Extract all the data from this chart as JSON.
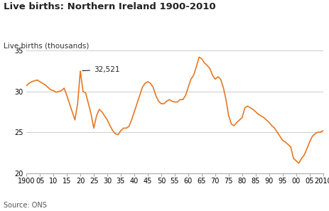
{
  "title": "Live births: Northern Ireland 1900-2010",
  "ylabel": "Live births (thousands)",
  "source": "Source: ONS",
  "line_color": "#E87722",
  "background_color": "#ffffff",
  "ylim": [
    20,
    35
  ],
  "yticks": [
    20,
    25,
    30,
    35
  ],
  "xticks": [
    1900,
    1905,
    1910,
    1915,
    1920,
    1925,
    1930,
    1935,
    1940,
    1945,
    1950,
    1955,
    1960,
    1965,
    1970,
    1975,
    1980,
    1985,
    1990,
    1995,
    2000,
    2005,
    2010
  ],
  "xticklabels": [
    "1900",
    "05",
    "10",
    "15",
    "20",
    "25",
    "30",
    "35",
    "40",
    "45",
    "50",
    "55",
    "60",
    "65",
    "70",
    "75",
    "80",
    "85",
    "90",
    "95",
    "00",
    "05",
    "2010"
  ],
  "annotation_year": 1920,
  "annotation_value": 32.521,
  "annotation_text": "32,521",
  "years": [
    1900,
    1901,
    1902,
    1903,
    1904,
    1905,
    1906,
    1907,
    1908,
    1909,
    1910,
    1911,
    1912,
    1913,
    1914,
    1915,
    1916,
    1917,
    1918,
    1919,
    1920,
    1921,
    1922,
    1923,
    1924,
    1925,
    1926,
    1927,
    1928,
    1929,
    1930,
    1931,
    1932,
    1933,
    1934,
    1935,
    1936,
    1937,
    1938,
    1939,
    1940,
    1941,
    1942,
    1943,
    1944,
    1945,
    1946,
    1947,
    1948,
    1949,
    1950,
    1951,
    1952,
    1953,
    1954,
    1955,
    1956,
    1957,
    1958,
    1959,
    1960,
    1961,
    1962,
    1963,
    1964,
    1965,
    1966,
    1967,
    1968,
    1969,
    1970,
    1971,
    1972,
    1973,
    1974,
    1975,
    1976,
    1977,
    1978,
    1979,
    1980,
    1981,
    1982,
    1983,
    1984,
    1985,
    1986,
    1987,
    1988,
    1989,
    1990,
    1991,
    1992,
    1993,
    1994,
    1995,
    1996,
    1997,
    1998,
    1999,
    2000,
    2001,
    2002,
    2003,
    2004,
    2005,
    2006,
    2007,
    2008,
    2009,
    2010
  ],
  "values": [
    30.7,
    31.0,
    31.2,
    31.3,
    31.4,
    31.2,
    31.0,
    30.8,
    30.5,
    30.2,
    30.1,
    29.9,
    30.0,
    30.1,
    30.4,
    29.5,
    28.5,
    27.5,
    26.5,
    28.5,
    32.5,
    30.0,
    29.8,
    28.5,
    27.2,
    25.5,
    27.0,
    27.8,
    27.5,
    27.0,
    26.5,
    25.8,
    25.2,
    24.8,
    24.7,
    25.2,
    25.5,
    25.5,
    25.7,
    26.5,
    27.5,
    28.5,
    29.5,
    30.5,
    31.0,
    31.2,
    31.0,
    30.5,
    29.5,
    28.8,
    28.5,
    28.5,
    28.8,
    29.0,
    28.8,
    28.7,
    28.7,
    29.0,
    29.0,
    29.5,
    30.5,
    31.5,
    32.0,
    33.0,
    34.2,
    34.0,
    33.5,
    33.2,
    32.8,
    32.0,
    31.5,
    31.8,
    31.5,
    30.5,
    29.0,
    27.0,
    26.0,
    25.8,
    26.2,
    26.5,
    26.8,
    28.0,
    28.2,
    28.0,
    27.8,
    27.5,
    27.2,
    27.0,
    26.8,
    26.5,
    26.2,
    25.8,
    25.5,
    25.0,
    24.5,
    24.0,
    23.8,
    23.5,
    23.2,
    21.8,
    21.5,
    21.2,
    21.8,
    22.2,
    23.0,
    23.8,
    24.5,
    24.8,
    25.0,
    25.0,
    25.2
  ]
}
